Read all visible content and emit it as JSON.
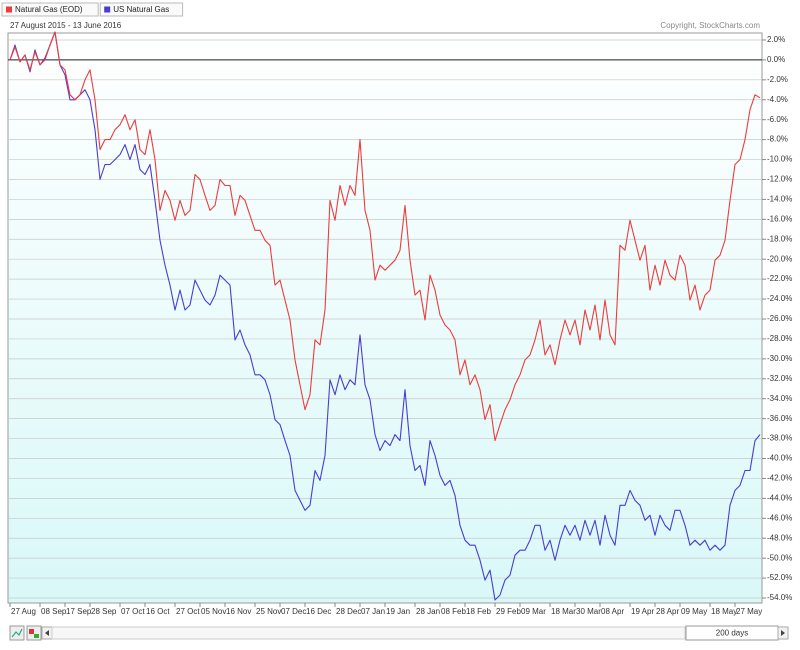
{
  "chart_data": {
    "type": "line",
    "subtitle": "27 August 2015 - 13 June 2016",
    "source": "Copyright, StockCharts.com",
    "categories": [
      "27 Aug",
      null,
      null,
      null,
      null,
      null,
      "08 Sep",
      null,
      null,
      null,
      null,
      "17 Sep",
      null,
      null,
      null,
      null,
      "28 Sep",
      null,
      null,
      null,
      null,
      null,
      "07 Oct",
      null,
      null,
      null,
      null,
      "16 Oct",
      null,
      null,
      null,
      null,
      null,
      "27 Oct",
      null,
      null,
      null,
      null,
      "05 Nov",
      null,
      null,
      null,
      null,
      "16 Nov",
      null,
      null,
      null,
      null,
      null,
      "25 Nov",
      null,
      null,
      null,
      null,
      "07 Dec",
      null,
      null,
      null,
      null,
      "16 Dec",
      null,
      null,
      null,
      null,
      null,
      "28 Dec",
      null,
      null,
      null,
      null,
      "07 Jan",
      null,
      null,
      null,
      null,
      "19 Jan",
      null,
      null,
      null,
      null,
      null,
      "28 Jan",
      null,
      null,
      null,
      null,
      "08 Feb",
      null,
      null,
      null,
      null,
      "18 Feb",
      null,
      null,
      null,
      null,
      null,
      "29 Feb",
      null,
      null,
      null,
      null,
      "09 Mar",
      null,
      null,
      null,
      null,
      null,
      "18 Mar",
      null,
      null,
      null,
      null,
      "30 Mar",
      null,
      null,
      null,
      null,
      "08 Apr",
      null,
      null,
      null,
      null,
      null,
      "19 Apr",
      null,
      null,
      null,
      null,
      "28 Apr",
      null,
      null,
      null,
      null,
      "09 May",
      null,
      null,
      null,
      null,
      null,
      "18 May",
      null,
      null,
      null,
      null,
      "27 May",
      null,
      null,
      null,
      null,
      null
    ],
    "series": [
      {
        "name": "Natural Gas (EOD)",
        "color": "#ee3b3b",
        "values": [
          0,
          1.3,
          -0.2,
          0.5,
          -1.0,
          0.8,
          -0.5,
          0,
          1.5,
          2.8,
          -0.5,
          -1.0,
          -3.5,
          -4.0,
          -3.5,
          -2.0,
          -1.0,
          -4.0,
          -9.0,
          -8.0,
          -8.0,
          -7.0,
          -6.5,
          -5.5,
          -7.0,
          -6.0,
          -9.0,
          -9.5,
          -7.0,
          -10.0,
          -15.1,
          -13.1,
          -14.1,
          -16.1,
          -14.1,
          -15.6,
          -15.1,
          -11.5,
          -12.0,
          -13.6,
          -15.1,
          -14.6,
          -12.0,
          -12.6,
          -12.6,
          -15.6,
          -13.6,
          -14.1,
          -15.6,
          -17.1,
          -17.1,
          -18.1,
          -18.6,
          -22.6,
          -22.1,
          -24.1,
          -26.1,
          -30.1,
          -32.6,
          -35.1,
          -33.6,
          -28.1,
          -28.6,
          -25.1,
          -14.1,
          -16.1,
          -12.6,
          -14.6,
          -12.6,
          -13.6,
          -8.0,
          -15.1,
          -17.1,
          -22.1,
          -20.6,
          -21.1,
          -20.6,
          -20.1,
          -19.1,
          -14.6,
          -20.1,
          -23.6,
          -23.1,
          -26.1,
          -21.6,
          -23.1,
          -25.6,
          -26.6,
          -27.1,
          -28.1,
          -31.6,
          -30.1,
          -32.6,
          -31.6,
          -33.1,
          -36.1,
          -34.6,
          -38.2,
          -36.6,
          -35.1,
          -34.1,
          -32.6,
          -31.6,
          -30.1,
          -29.6,
          -28.1,
          -26.1,
          -29.6,
          -28.6,
          -30.6,
          -28.1,
          -26.1,
          -27.6,
          -26.1,
          -28.6,
          -25.1,
          -27.1,
          -24.6,
          -28.1,
          -24.1,
          -27.6,
          -28.6,
          -18.6,
          -19.1,
          -16.1,
          -18.1,
          -20.1,
          -18.6,
          -23.1,
          -20.6,
          -22.6,
          -20.1,
          -21.6,
          -22.1,
          -19.6,
          -20.6,
          -24.1,
          -22.6,
          -25.1,
          -23.6,
          -23.1,
          -20.1,
          -19.6,
          -18.1,
          -14.1,
          -10.5,
          -10.0,
          -8.0,
          -5.0,
          -3.5,
          -3.8
        ]
      },
      {
        "name": "US Natural Gas",
        "color": "#4a3cd2",
        "values": [
          0,
          1.5,
          -0.2,
          0.5,
          -1.2,
          1.0,
          -0.5,
          0.2,
          1.5,
          2.8,
          -0.5,
          -1.5,
          -4.0,
          -4.0,
          -3.5,
          -3.0,
          -4.0,
          -7.0,
          -12.0,
          -10.5,
          -10.5,
          -10.0,
          -9.5,
          -8.5,
          -10.0,
          -8.5,
          -11.0,
          -11.5,
          -10.5,
          -14.1,
          -18.1,
          -20.6,
          -22.6,
          -25.1,
          -23.1,
          -25.1,
          -24.6,
          -22.1,
          -23.1,
          -24.1,
          -24.6,
          -23.6,
          -21.6,
          -22.1,
          -22.6,
          -28.1,
          -27.1,
          -28.6,
          -29.6,
          -31.6,
          -31.6,
          -32.1,
          -33.6,
          -36.1,
          -36.6,
          -38.2,
          -39.7,
          -43.2,
          -44.2,
          -45.2,
          -44.7,
          -41.2,
          -42.2,
          -39.7,
          -32.1,
          -33.6,
          -31.6,
          -33.1,
          -32.1,
          -32.6,
          -27.6,
          -32.6,
          -34.1,
          -37.6,
          -39.2,
          -38.2,
          -38.7,
          -37.6,
          -38.2,
          -33.1,
          -38.7,
          -41.2,
          -40.7,
          -42.7,
          -38.2,
          -39.7,
          -41.7,
          -42.7,
          -42.2,
          -43.7,
          -46.7,
          -48.2,
          -48.7,
          -48.7,
          -50.2,
          -52.2,
          -51.2,
          -54.2,
          -53.7,
          -52.2,
          -51.7,
          -49.7,
          -49.2,
          -49.2,
          -48.2,
          -46.7,
          -46.7,
          -49.2,
          -48.2,
          -50.2,
          -48.2,
          -46.7,
          -47.7,
          -46.7,
          -48.2,
          -46.2,
          -47.7,
          -46.2,
          -48.7,
          -45.7,
          -47.7,
          -48.7,
          -44.7,
          -44.7,
          -43.2,
          -44.2,
          -44.7,
          -46.2,
          -45.7,
          -47.7,
          -45.7,
          -46.7,
          -47.2,
          -45.2,
          -45.2,
          -46.7,
          -48.7,
          -48.2,
          -48.7,
          -48.2,
          -49.2,
          -48.7,
          -49.2,
          -48.7,
          -44.7,
          -43.2,
          -42.7,
          -41.2,
          -41.2,
          -38.2,
          -37.6
        ]
      }
    ],
    "ylim": [
      -54.5,
      2.7
    ],
    "yticks": [
      {
        "value": 2,
        "label": "2.0%"
      },
      {
        "value": 0,
        "label": "0.0%"
      },
      {
        "value": -2,
        "label": "-2.0%"
      },
      {
        "value": -4,
        "label": "-4.0%"
      },
      {
        "value": -6,
        "label": "-6.0%"
      },
      {
        "value": -8,
        "label": "-8.0%"
      },
      {
        "value": -10,
        "label": "-10.0%"
      },
      {
        "value": -12,
        "label": "-12.0%"
      },
      {
        "value": -14,
        "label": "-14.0%"
      },
      {
        "value": -16,
        "label": "-16.0%"
      },
      {
        "value": -18,
        "label": "-18.0%"
      },
      {
        "value": -20,
        "label": "-20.0%"
      },
      {
        "value": -22,
        "label": "-22.0%"
      },
      {
        "value": -24,
        "label": "-24.0%"
      },
      {
        "value": -26,
        "label": "-26.0%"
      },
      {
        "value": -28,
        "label": "-28.0%"
      },
      {
        "value": -30,
        "label": "-30.0%"
      },
      {
        "value": -32,
        "label": "-32.0%"
      },
      {
        "value": -34,
        "label": "-34.0%"
      },
      {
        "value": -36,
        "label": "-36.0%"
      },
      {
        "value": -38,
        "label": "-38.0%"
      },
      {
        "value": -40,
        "label": "-40.0%"
      },
      {
        "value": -42,
        "label": "-42.0%"
      },
      {
        "value": -44,
        "label": "-44.0%"
      },
      {
        "value": -46,
        "label": "-46.0%"
      },
      {
        "value": -48,
        "label": "-48.0%"
      },
      {
        "value": -50,
        "label": "-50.0%"
      },
      {
        "value": -52,
        "label": "-52.0%"
      },
      {
        "value": -54,
        "label": "-54.0%"
      }
    ],
    "zero_line": 0,
    "grid": true
  },
  "range_selector": "200 days"
}
